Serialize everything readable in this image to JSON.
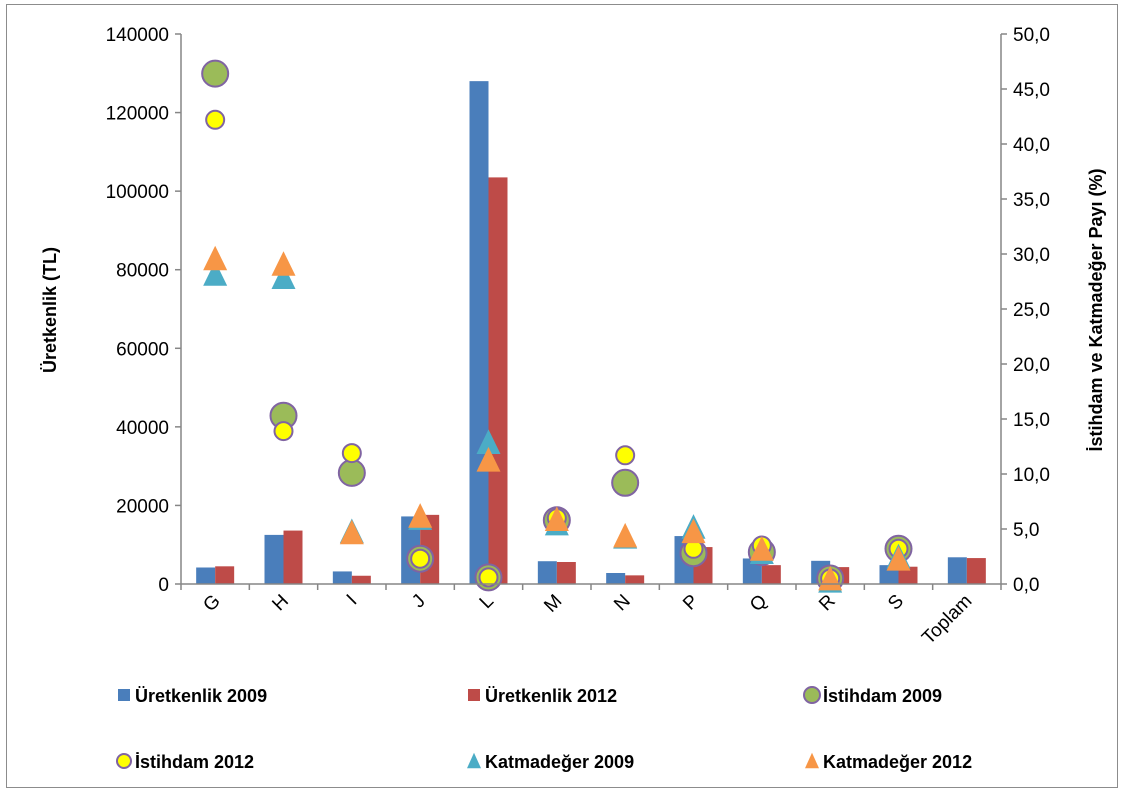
{
  "chart_data": {
    "type": "bar",
    "categories": [
      "G",
      "H",
      "I",
      "J",
      "L",
      "M",
      "N",
      "P",
      "Q",
      "R",
      "S",
      "Toplam"
    ],
    "ylabel": "Üretkenlik (TL)",
    "y2label": "İstihdam ve Katmadeğer Payı (%)",
    "ylim": [
      0,
      140000
    ],
    "y2lim": [
      0,
      50
    ],
    "yticks": [
      "0",
      "20000",
      "40000",
      "60000",
      "80000",
      "100000",
      "120000",
      "140000"
    ],
    "y2ticks": [
      "0,0",
      "5,0",
      "10,0",
      "15,0",
      "20,0",
      "25,0",
      "30,0",
      "35,0",
      "40,0",
      "45,0",
      "50,0"
    ],
    "grid": false,
    "legend_position": "bottom",
    "bar_series": [
      {
        "name": "Üretkenlik 2009",
        "color": "#4a7ebb",
        "values": [
          4200,
          12500,
          3200,
          17200,
          128000,
          5800,
          2800,
          12200,
          6500,
          5900,
          4800,
          6800
        ]
      },
      {
        "name": "Üretkenlik 2012",
        "color": "#be4b48",
        "values": [
          4500,
          13600,
          2100,
          17600,
          103500,
          5600,
          2200,
          9400,
          4800,
          4300,
          4400,
          6600
        ]
      }
    ],
    "marker_series": [
      {
        "name": "İstihdam 2009",
        "marker": "circle-green",
        "color": "#9bbb59",
        "values": [
          46.4,
          15.3,
          10.1,
          2.3,
          0.6,
          5.8,
          9.2,
          2.8,
          2.9,
          0.5,
          3.2,
          null
        ]
      },
      {
        "name": "İstihdam 2012",
        "marker": "circle-yellow",
        "color": "#ffff00",
        "values": [
          42.2,
          13.9,
          11.9,
          2.3,
          0.6,
          6.0,
          11.7,
          3.2,
          3.5,
          0.5,
          3.2,
          null
        ]
      },
      {
        "name": "Katmadeğer 2009",
        "marker": "triangle",
        "color": "#4bacc6",
        "values": [
          28.1,
          27.8,
          4.7,
          5.9,
          12.8,
          5.4,
          4.2,
          5.1,
          2.8,
          0.2,
          2.4,
          null
        ]
      },
      {
        "name": "Katmadeğer 2012",
        "marker": "triangle",
        "color": "#f79646",
        "values": [
          29.5,
          29.0,
          4.6,
          6.1,
          11.2,
          5.8,
          4.3,
          4.7,
          3.1,
          0.4,
          2.2,
          null
        ]
      }
    ]
  }
}
